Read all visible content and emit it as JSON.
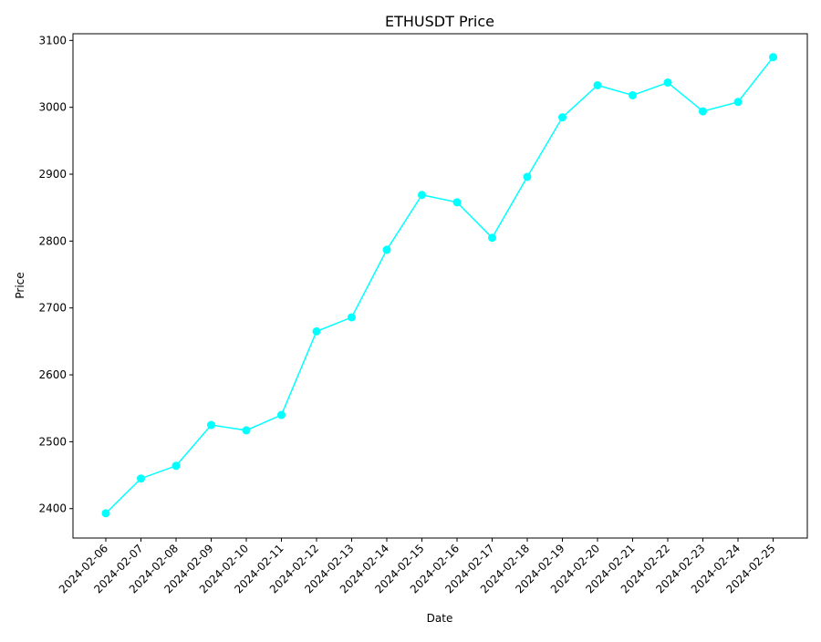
{
  "chart_data": {
    "type": "line",
    "title": "ETHUSDT Price",
    "xlabel": "Date",
    "ylabel": "Price",
    "categories": [
      "2024-02-06",
      "2024-02-07",
      "2024-02-08",
      "2024-02-09",
      "2024-02-10",
      "2024-02-11",
      "2024-02-12",
      "2024-02-13",
      "2024-02-14",
      "2024-02-15",
      "2024-02-16",
      "2024-02-17",
      "2024-02-18",
      "2024-02-19",
      "2024-02-20",
      "2024-02-21",
      "2024-02-22",
      "2024-02-23",
      "2024-02-24",
      "2024-02-25"
    ],
    "series": [
      {
        "values": [
          2393,
          2445,
          2464,
          2525,
          2517,
          2540,
          2665,
          2686,
          2787,
          2869,
          2858,
          2805,
          2896,
          2985,
          3033,
          3018,
          3037,
          2994,
          3008,
          3075
        ],
        "color": "#00ffff",
        "marker": "circle"
      }
    ],
    "ylim": [
      2356,
      3110
    ],
    "yticks": [
      2400,
      2500,
      2600,
      2700,
      2800,
      2900,
      3000,
      3100
    ],
    "grid": false,
    "legend": "none"
  }
}
